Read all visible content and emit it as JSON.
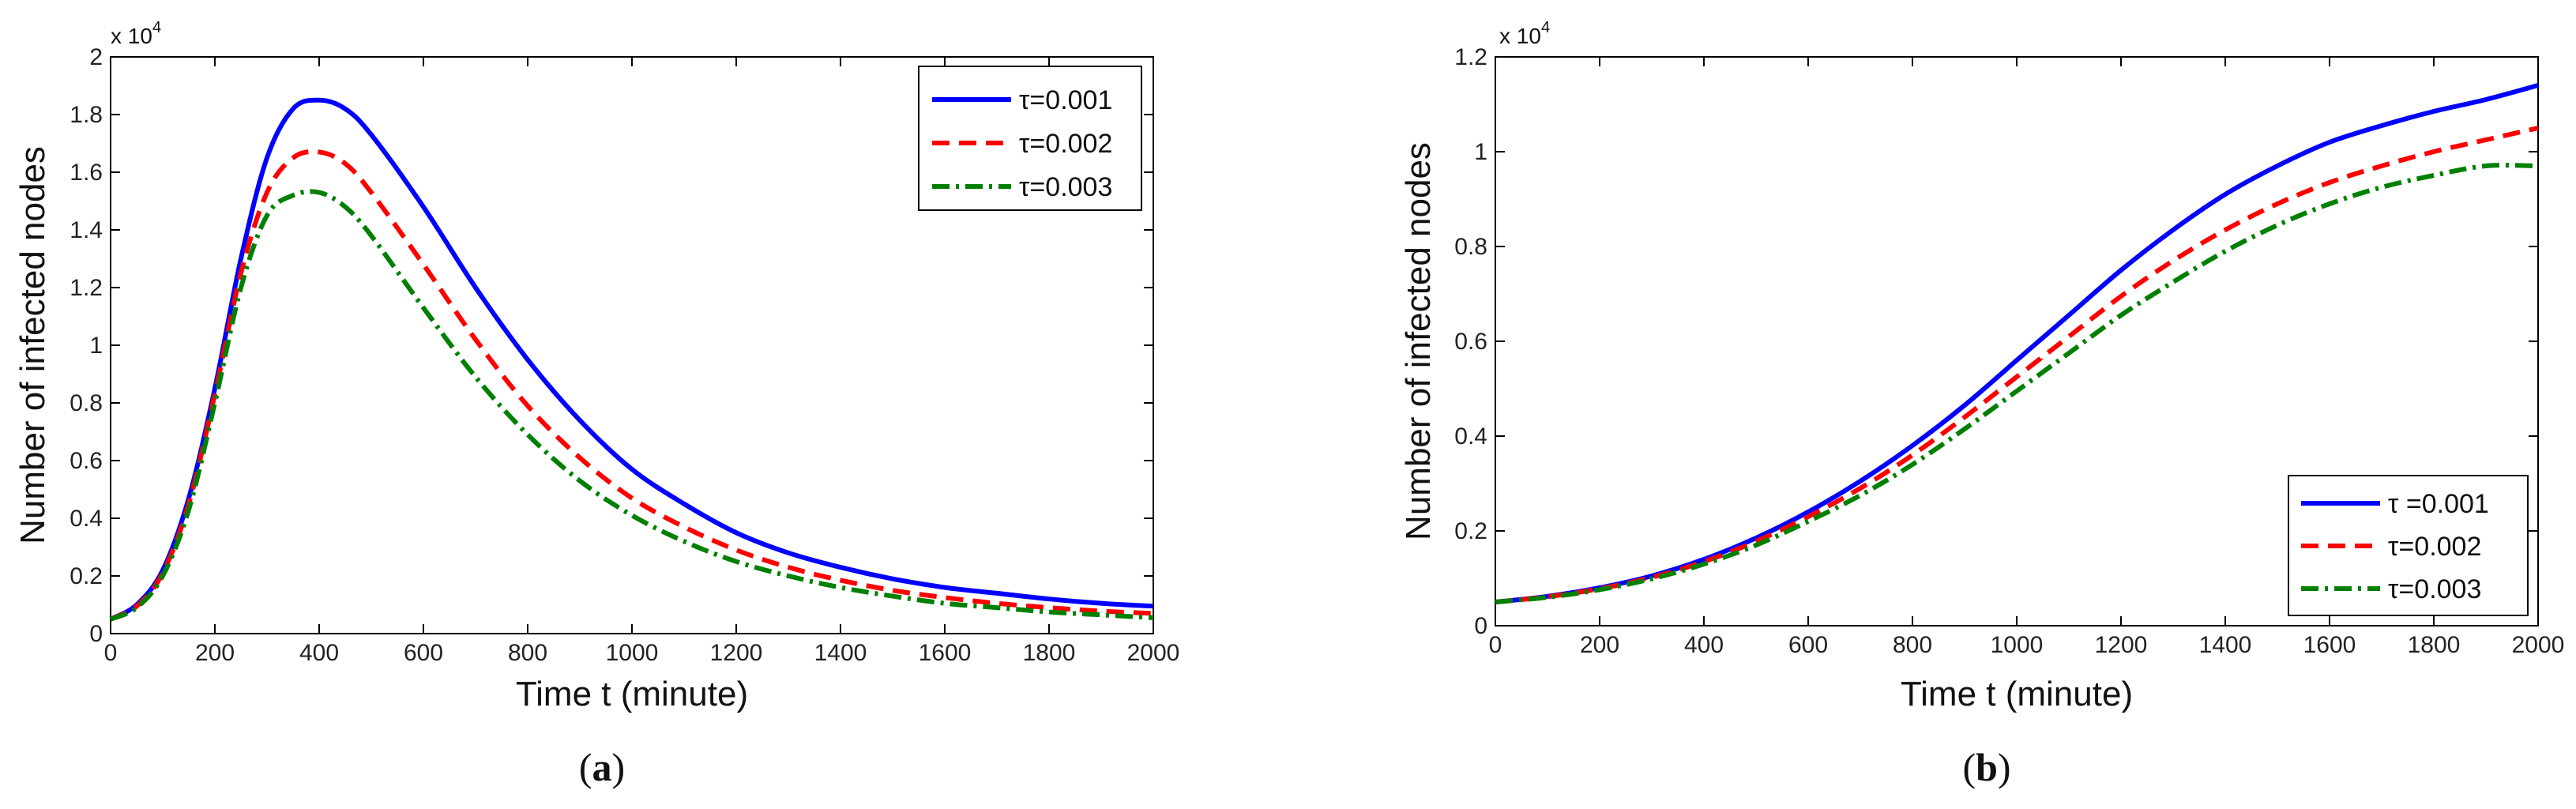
{
  "chart_data": [
    {
      "type": "line",
      "panel": "a",
      "caption_letter": "a",
      "title": "",
      "xlabel": "Time t (minute)",
      "ylabel": "Number of infected nodes",
      "xlim": [
        0,
        2000
      ],
      "ylim": [
        0,
        20000
      ],
      "y_multiplier": "x 10",
      "y_multiplier_exp": "4",
      "xticks": [
        0,
        200,
        400,
        600,
        800,
        1000,
        1200,
        1400,
        1600,
        1800,
        2000
      ],
      "xtick_labels": [
        "0",
        "200",
        "400",
        "600",
        "800",
        "1000",
        "1200",
        "1400",
        "1600",
        "1800",
        "2000"
      ],
      "yticks": [
        0,
        2000,
        4000,
        6000,
        8000,
        10000,
        12000,
        14000,
        16000,
        18000,
        20000
      ],
      "ytick_labels": [
        "0",
        "0.2",
        "0.4",
        "0.6",
        "0.8",
        "1",
        "1.2",
        "1.4",
        "1.6",
        "1.8",
        "2"
      ],
      "legend_position": "top-right",
      "series": [
        {
          "name": "τ=0.001",
          "color": "#0000ff",
          "style": "solid",
          "x": [
            0,
            50,
            100,
            150,
            200,
            250,
            300,
            350,
            400,
            450,
            500,
            600,
            700,
            800,
            900,
            1000,
            1100,
            1200,
            1300,
            1400,
            1500,
            1600,
            1700,
            1800,
            1900,
            2000
          ],
          "y": [
            500,
            1000,
            2200,
            4700,
            8500,
            13000,
            16500,
            18200,
            18500,
            18200,
            17300,
            14800,
            12000,
            9500,
            7400,
            5700,
            4500,
            3500,
            2800,
            2300,
            1900,
            1600,
            1400,
            1200,
            1050,
            950
          ]
        },
        {
          "name": "τ=0.002",
          "color": "#ff0000",
          "style": "dashed",
          "x": [
            0,
            50,
            100,
            150,
            200,
            250,
            300,
            350,
            400,
            450,
            500,
            600,
            700,
            800,
            900,
            1000,
            1100,
            1200,
            1300,
            1400,
            1500,
            1600,
            1700,
            1800,
            1900,
            2000
          ],
          "y": [
            500,
            950,
            2100,
            4500,
            8300,
            12500,
            15300,
            16500,
            16700,
            16300,
            15300,
            12800,
            10200,
            7900,
            6100,
            4700,
            3700,
            2900,
            2300,
            1850,
            1500,
            1250,
            1050,
            900,
            780,
            700
          ]
        },
        {
          "name": "τ=0.003",
          "color": "#008000",
          "style": "dashdot",
          "x": [
            0,
            50,
            100,
            150,
            200,
            250,
            300,
            350,
            400,
            450,
            500,
            600,
            700,
            800,
            900,
            1000,
            1100,
            1200,
            1300,
            1400,
            1500,
            1600,
            1700,
            1800,
            1900,
            2000
          ],
          "y": [
            500,
            900,
            2000,
            4300,
            8000,
            12000,
            14500,
            15200,
            15300,
            14800,
            13800,
            11300,
            8900,
            6900,
            5300,
            4100,
            3200,
            2500,
            2000,
            1600,
            1300,
            1050,
            900,
            750,
            650,
            550
          ]
        }
      ]
    },
    {
      "type": "line",
      "panel": "b",
      "caption_letter": "b",
      "title": "",
      "xlabel": "Time t (minute)",
      "ylabel": "Number of infected nodes",
      "xlim": [
        0,
        2000
      ],
      "ylim": [
        0,
        12000
      ],
      "y_multiplier": "x 10",
      "y_multiplier_exp": "4",
      "xticks": [
        0,
        200,
        400,
        600,
        800,
        1000,
        1200,
        1400,
        1600,
        1800,
        2000
      ],
      "xtick_labels": [
        "0",
        "200",
        "400",
        "600",
        "800",
        "1000",
        "1200",
        "1400",
        "1600",
        "1800",
        "2000"
      ],
      "yticks": [
        0,
        2000,
        4000,
        6000,
        8000,
        10000,
        12000
      ],
      "ytick_labels": [
        "0",
        "0.2",
        "0.4",
        "0.6",
        "0.8",
        "1",
        "1.2"
      ],
      "legend_position": "bottom-right",
      "series": [
        {
          "name": "τ =0.001",
          "color": "#0000ff",
          "style": "solid",
          "x": [
            0,
            100,
            200,
            300,
            400,
            500,
            600,
            700,
            800,
            900,
            1000,
            1100,
            1200,
            1300,
            1400,
            1500,
            1600,
            1700,
            1800,
            1900,
            2000
          ],
          "y": [
            500,
            620,
            800,
            1050,
            1400,
            1850,
            2400,
            3050,
            3800,
            4650,
            5600,
            6550,
            7500,
            8350,
            9100,
            9700,
            10200,
            10550,
            10850,
            11100,
            11400
          ]
        },
        {
          "name": "τ=0.002",
          "color": "#ff0000",
          "style": "dashed",
          "x": [
            0,
            100,
            200,
            300,
            400,
            500,
            600,
            700,
            800,
            900,
            1000,
            1100,
            1200,
            1300,
            1400,
            1500,
            1600,
            1700,
            1800,
            1900,
            2000
          ],
          "y": [
            500,
            610,
            780,
            1020,
            1350,
            1780,
            2300,
            2900,
            3600,
            4400,
            5250,
            6100,
            6950,
            7700,
            8350,
            8900,
            9350,
            9700,
            10000,
            10250,
            10500
          ]
        },
        {
          "name": "τ=0.003",
          "color": "#008000",
          "style": "dashdot",
          "x": [
            0,
            100,
            200,
            300,
            400,
            500,
            600,
            700,
            800,
            900,
            1000,
            1100,
            1200,
            1300,
            1400,
            1500,
            1600,
            1700,
            1800,
            1900,
            2000
          ],
          "y": [
            500,
            600,
            760,
            990,
            1300,
            1700,
            2200,
            2750,
            3400,
            4150,
            4950,
            5750,
            6550,
            7250,
            7900,
            8450,
            8900,
            9250,
            9500,
            9700,
            9700
          ]
        }
      ]
    }
  ]
}
